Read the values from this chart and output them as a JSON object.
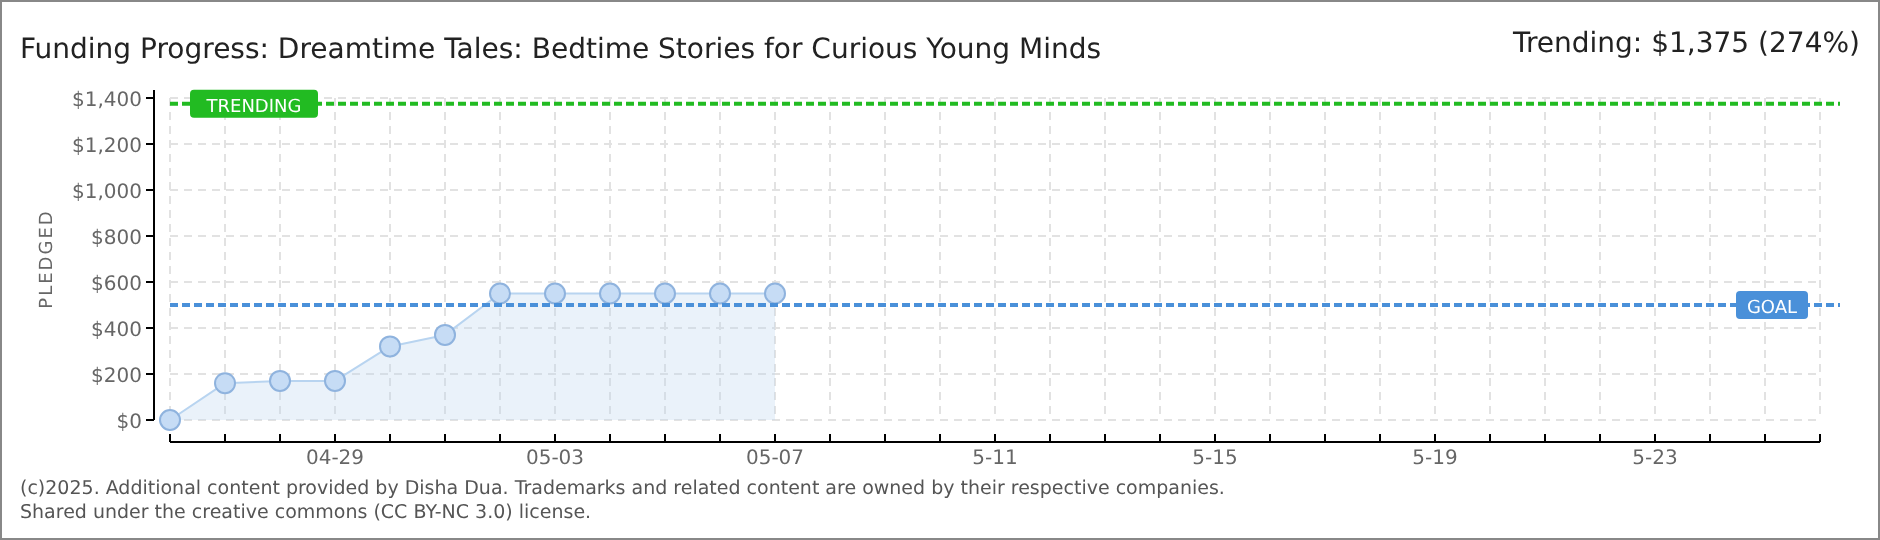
{
  "chart_data": {
    "type": "area",
    "title": "Funding Progress: Dreamtime Tales: Bedtime Stories for Curious Young Minds",
    "subtitle": "Trending: $1,375 (274%)",
    "ylabel": "PLEDGED",
    "x": [
      "--04-26",
      "--04-27",
      "--04-28",
      "--04-29",
      "--04-30",
      "--05-01",
      "--05-02",
      "--05-03",
      "--05-04",
      "--05-05",
      "--05-06",
      "--05-07"
    ],
    "series": [
      {
        "color": "#b8d4f0",
        "values": [
          0,
          160,
          170,
          170,
          320,
          370,
          550,
          550,
          550,
          550,
          550,
          550
        ]
      }
    ],
    "xlim": [
      "--04-26",
      "--05-26"
    ],
    "xticks": [
      {
        "value": "--04-26",
        "label": null
      },
      {
        "value": "--04-27",
        "label": null
      },
      {
        "value": "--04-28",
        "label": null
      },
      {
        "value": "--04-29",
        "label": "04-29"
      },
      {
        "value": "--04-30",
        "label": null
      },
      {
        "value": "--05-01",
        "label": null
      },
      {
        "value": "--05-02",
        "label": null
      },
      {
        "value": "--05-03",
        "label": "05-03"
      },
      {
        "value": "--05-04",
        "label": null
      },
      {
        "value": "--05-05",
        "label": null
      },
      {
        "value": "--05-06",
        "label": null
      },
      {
        "value": "--05-07",
        "label": "05-07"
      },
      {
        "value": "--05-08",
        "label": null
      },
      {
        "value": "--05-09",
        "label": null
      },
      {
        "value": "--05-10",
        "label": null
      },
      {
        "value": "--05-11",
        "label": "5-11"
      },
      {
        "value": "--05-12",
        "label": null
      },
      {
        "value": "--05-13",
        "label": null
      },
      {
        "value": "--05-14",
        "label": null
      },
      {
        "value": "--05-15",
        "label": "5-15"
      },
      {
        "value": "--05-16",
        "label": null
      },
      {
        "value": "--05-17",
        "label": null
      },
      {
        "value": "--05-18",
        "label": null
      },
      {
        "value": "--05-19",
        "label": "5-19"
      },
      {
        "value": "--05-20",
        "label": null
      },
      {
        "value": "--05-21",
        "label": null
      },
      {
        "value": "--05-22",
        "label": null
      },
      {
        "value": "--05-23",
        "label": "5-23"
      },
      {
        "value": "--05-24",
        "label": null
      },
      {
        "value": "--05-25",
        "label": null
      },
      {
        "value": "--05-26",
        "label": null
      }
    ],
    "ylim": [
      0,
      1400
    ],
    "yticks": [
      {
        "value": 0,
        "label": "$0"
      },
      {
        "value": 200,
        "label": "$200"
      },
      {
        "value": 400,
        "label": "$400"
      },
      {
        "value": 600,
        "label": "$600"
      },
      {
        "value": 800,
        "label": "$800"
      },
      {
        "value": 1000,
        "label": "$1,000"
      },
      {
        "value": 1200,
        "label": "$1,200"
      },
      {
        "value": 1400,
        "label": "$1,400"
      }
    ],
    "ref_lines": [
      {
        "axis": "y",
        "value": 500,
        "label": "GOAL",
        "color": "#4a90d9",
        "line_style": "dashed"
      },
      {
        "axis": "y",
        "value": 1375,
        "label": "TRENDING",
        "color": "#22bb22",
        "line_style": "dashed"
      }
    ],
    "grid": true,
    "marker": "circle",
    "annotations": [
      "(c)2025. Additional content provided by Disha Dua. Trademarks and related content are owned by their respective companies.",
      "Shared under the creative commons (CC BY-NC 3.0) license."
    ]
  }
}
